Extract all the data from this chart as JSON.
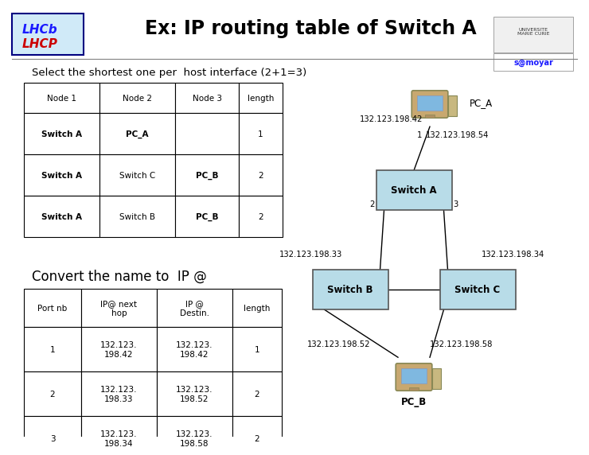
{
  "title": "Ex: IP routing table of Switch A",
  "subtitle": "Select the shortest one per  host interface (2+1=3)",
  "subtitle2": "Convert the name to  IP @",
  "bg_color": "#ffffff",
  "table1_headers": [
    "Node 1",
    "Node 2",
    "Node 3",
    "length"
  ],
  "table1_rows": [
    [
      "Switch A",
      "PC_A",
      "",
      "1"
    ],
    [
      "Switch A",
      "Switch C",
      "PC_B",
      "2"
    ],
    [
      "Switch A",
      "Switch B",
      "PC_B",
      "2"
    ]
  ],
  "table2_headers": [
    "Port nb",
    "IP@ next\nhop",
    "IP @\nDestin.",
    "length"
  ],
  "table2_rows": [
    [
      "1",
      "132.123.\n198.42",
      "132.123.\n198.42",
      "1"
    ],
    [
      "2",
      "132.123.\n198.33",
      "132.123.\n198.52",
      "2"
    ],
    [
      "3",
      "132.123.\n198.34",
      "132.123.\n198.58",
      "2"
    ]
  ],
  "box_color": "#b8dce8",
  "ip_pca_left": "132.123.198.42",
  "ip_pca_right": "132.123.198.54",
  "ip_swb": "132.123.198.33",
  "ip_swc": "132.123.198.34",
  "ip_pcb_left": "132.123.198.52",
  "ip_pcb_right": "132.123.198.58",
  "port1": "1",
  "port2": "2",
  "port3": "3",
  "lhcb_bg": "#d0eaf8",
  "lhcb_text1": "LHCb",
  "lhcb_text2": "LHCP"
}
